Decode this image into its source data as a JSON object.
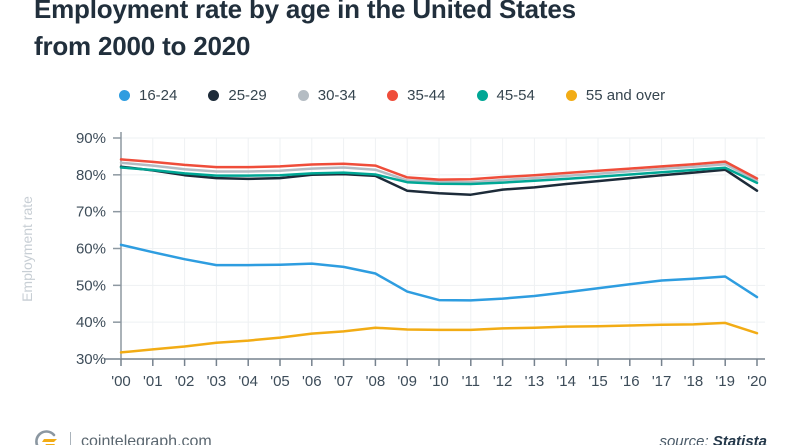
{
  "page": {
    "title_line1": "Employment rate by age in the United States",
    "title_line2": "from 2000 to 2020",
    "footer": {
      "site": "cointelegraph.com",
      "source_label": "source:",
      "source_value": "Statista",
      "logo": "cointelegraph-logo"
    }
  },
  "colors": {
    "title_text": "#212f3c",
    "tick_text": "#3d4c59",
    "axis_line": "#8d98a1",
    "bottom_axis_line": "#76828e",
    "gridline": "#eef1f3",
    "ylabel_text": "#c7ced4",
    "legend_text": "#36454f",
    "background": "#ffffff"
  },
  "chart_data": {
    "type": "line",
    "title": "Employment rate by age in the United States from 2000 to 2020",
    "xlabel": "",
    "ylabel": "Employment rate",
    "grid": true,
    "legend_position": "top",
    "ylim": [
      30,
      90
    ],
    "x": [
      2000,
      2001,
      2002,
      2003,
      2004,
      2005,
      2006,
      2007,
      2008,
      2009,
      2010,
      2011,
      2012,
      2013,
      2014,
      2015,
      2016,
      2017,
      2018,
      2019,
      2020
    ],
    "x_tick_labels": [
      "'00",
      "'01",
      "'02",
      "'03",
      "'04",
      "'05",
      "'06",
      "'07",
      "'08",
      "'09",
      "'10",
      "'11",
      "'12",
      "'13",
      "'14",
      "'15",
      "'16",
      "'17",
      "'18",
      "'19",
      "'20"
    ],
    "y_ticks": [
      90,
      80,
      70,
      60,
      50,
      40,
      30
    ],
    "y_tick_labels": [
      "90%",
      "80%",
      "70%",
      "60%",
      "50%",
      "40%",
      "30%"
    ],
    "series": [
      {
        "name": "16-24",
        "color": "#2e9de0",
        "values": [
          61.0,
          59.0,
          57.1,
          55.5,
          55.5,
          55.6,
          55.9,
          55.0,
          53.2,
          48.3,
          46.0,
          45.9,
          46.4,
          47.1,
          48.1,
          49.2,
          50.3,
          51.3,
          51.8,
          52.4,
          46.8
        ]
      },
      {
        "name": "25-29",
        "color": "#1d2b39",
        "values": [
          82.2,
          81.2,
          79.9,
          79.1,
          78.9,
          79.1,
          80.0,
          80.2,
          79.7,
          75.7,
          75.0,
          74.6,
          76.0,
          76.6,
          77.5,
          78.3,
          79.1,
          79.9,
          80.6,
          81.4,
          75.7
        ]
      },
      {
        "name": "30-34",
        "color": "#b4bcc3",
        "values": [
          83.3,
          82.5,
          81.5,
          80.9,
          80.9,
          81.1,
          81.7,
          82.0,
          81.4,
          78.5,
          78.1,
          78.0,
          78.6,
          79.1,
          79.7,
          80.3,
          81.0,
          81.6,
          82.2,
          82.9,
          78.4
        ]
      },
      {
        "name": "35-44",
        "color": "#ef4d3a",
        "values": [
          84.2,
          83.5,
          82.7,
          82.1,
          82.1,
          82.3,
          82.8,
          83.0,
          82.5,
          79.3,
          78.7,
          78.8,
          79.4,
          79.9,
          80.5,
          81.1,
          81.7,
          82.3,
          82.9,
          83.6,
          79.0
        ]
      },
      {
        "name": "45-54",
        "color": "#00a795",
        "values": [
          82.0,
          81.3,
          80.4,
          79.8,
          79.8,
          79.9,
          80.4,
          80.6,
          80.1,
          78.0,
          77.6,
          77.5,
          77.9,
          78.4,
          78.9,
          79.5,
          80.1,
          80.7,
          81.3,
          81.9,
          77.8
        ]
      },
      {
        "name": "55 and over",
        "color": "#f2ac15",
        "values": [
          31.8,
          32.6,
          33.4,
          34.4,
          35.0,
          35.8,
          36.9,
          37.5,
          38.5,
          38.0,
          37.9,
          37.9,
          38.3,
          38.5,
          38.8,
          38.9,
          39.1,
          39.3,
          39.4,
          39.8,
          37.0
        ]
      }
    ]
  }
}
